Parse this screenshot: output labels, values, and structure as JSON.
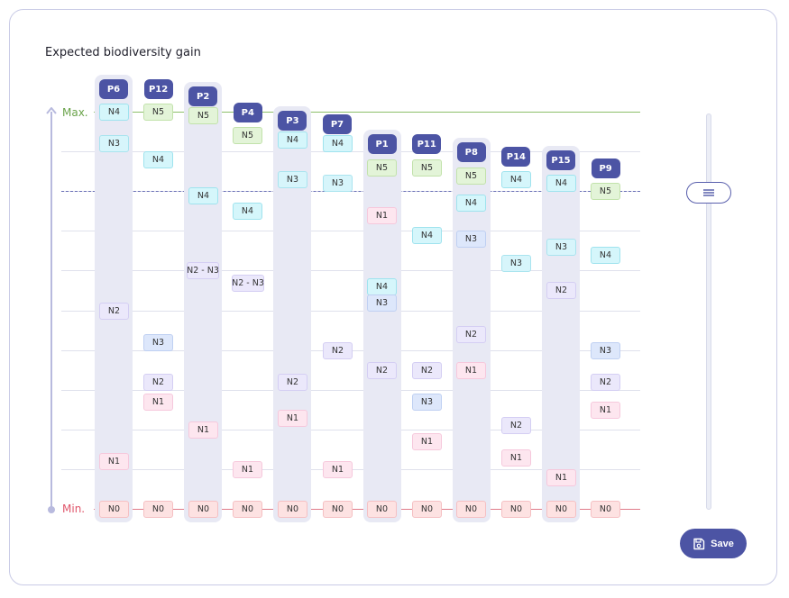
{
  "chart_title": "Expected biodiversity gain",
  "axis": {
    "max_label": "Max.",
    "min_label": "Min."
  },
  "save_label": "Save",
  "colors": {
    "accent": "#4c54a4",
    "max_line": "#8dbf6a",
    "min_line": "#e07a89",
    "threshold_line": "#6a6fb6"
  },
  "chart_data": {
    "type": "table",
    "y_scale": "relative, 0 = Min., 1 = Max.",
    "threshold": 0.8,
    "projects": [
      {
        "label": "P6",
        "head": 1.06,
        "levels": [
          {
            "n": "N4",
            "v": 1.0
          },
          {
            "n": "N3",
            "v": 0.92
          },
          {
            "n": "N2",
            "v": 0.5
          },
          {
            "n": "N1",
            "v": 0.12
          },
          {
            "n": "N0",
            "v": 0
          }
        ]
      },
      {
        "label": "P12",
        "head": 1.06,
        "levels": [
          {
            "n": "N5",
            "v": 1.0
          },
          {
            "n": "N4",
            "v": 0.88
          },
          {
            "n": "N3",
            "v": 0.42
          },
          {
            "n": "N2",
            "v": 0.32
          },
          {
            "n": "N1",
            "v": 0.27
          },
          {
            "n": "N0",
            "v": 0
          }
        ]
      },
      {
        "label": "P2",
        "head": 1.04,
        "levels": [
          {
            "n": "N5",
            "v": 0.99
          },
          {
            "n": "N4",
            "v": 0.79
          },
          {
            "n": "N2 - N3",
            "v": 0.6
          },
          {
            "n": "N1",
            "v": 0.2
          },
          {
            "n": "N0",
            "v": 0
          }
        ]
      },
      {
        "label": "P4",
        "head": 1.0,
        "levels": [
          {
            "n": "N5",
            "v": 0.94
          },
          {
            "n": "N4",
            "v": 0.75
          },
          {
            "n": "N2 - N3",
            "v": 0.57
          },
          {
            "n": "N1",
            "v": 0.1
          },
          {
            "n": "N0",
            "v": 0
          }
        ]
      },
      {
        "label": "P3",
        "head": 0.98,
        "levels": [
          {
            "n": "N4",
            "v": 0.93
          },
          {
            "n": "N3",
            "v": 0.83
          },
          {
            "n": "N2",
            "v": 0.32
          },
          {
            "n": "N1",
            "v": 0.23
          },
          {
            "n": "N0",
            "v": 0
          }
        ]
      },
      {
        "label": "P7",
        "head": 0.97,
        "levels": [
          {
            "n": "N4",
            "v": 0.92
          },
          {
            "n": "N3",
            "v": 0.82
          },
          {
            "n": "N2",
            "v": 0.4
          },
          {
            "n": "N1",
            "v": 0.1
          },
          {
            "n": "N0",
            "v": 0
          }
        ]
      },
      {
        "label": "P1",
        "head": 0.92,
        "levels": [
          {
            "n": "N5",
            "v": 0.86
          },
          {
            "n": "N1",
            "v": 0.74
          },
          {
            "n": "N4",
            "v": 0.56
          },
          {
            "n": "N3",
            "v": 0.52
          },
          {
            "n": "N2",
            "v": 0.35
          },
          {
            "n": "N0",
            "v": 0
          }
        ]
      },
      {
        "label": "P11",
        "head": 0.92,
        "levels": [
          {
            "n": "N5",
            "v": 0.86
          },
          {
            "n": "N4",
            "v": 0.69
          },
          {
            "n": "N2",
            "v": 0.35
          },
          {
            "n": "N3",
            "v": 0.27
          },
          {
            "n": "N1",
            "v": 0.17
          },
          {
            "n": "N0",
            "v": 0
          }
        ]
      },
      {
        "label": "P8",
        "head": 0.9,
        "levels": [
          {
            "n": "N5",
            "v": 0.84
          },
          {
            "n": "N4",
            "v": 0.77
          },
          {
            "n": "N3",
            "v": 0.68
          },
          {
            "n": "N2",
            "v": 0.44
          },
          {
            "n": "N1",
            "v": 0.35
          },
          {
            "n": "N0",
            "v": 0
          }
        ]
      },
      {
        "label": "P14",
        "head": 0.89,
        "levels": [
          {
            "n": "N4",
            "v": 0.83
          },
          {
            "n": "N3",
            "v": 0.62
          },
          {
            "n": "N2",
            "v": 0.21
          },
          {
            "n": "N1",
            "v": 0.13
          },
          {
            "n": "N0",
            "v": 0
          }
        ]
      },
      {
        "label": "P15",
        "head": 0.88,
        "levels": [
          {
            "n": "N4",
            "v": 0.82
          },
          {
            "n": "N3",
            "v": 0.66
          },
          {
            "n": "N2",
            "v": 0.55
          },
          {
            "n": "N1",
            "v": 0.08
          },
          {
            "n": "N0",
            "v": 0
          }
        ]
      },
      {
        "label": "P9",
        "head": 0.86,
        "levels": [
          {
            "n": "N5",
            "v": 0.8
          },
          {
            "n": "N4",
            "v": 0.64
          },
          {
            "n": "N3",
            "v": 0.4
          },
          {
            "n": "N2",
            "v": 0.32
          },
          {
            "n": "N1",
            "v": 0.25
          },
          {
            "n": "N0",
            "v": 0
          }
        ]
      }
    ]
  }
}
